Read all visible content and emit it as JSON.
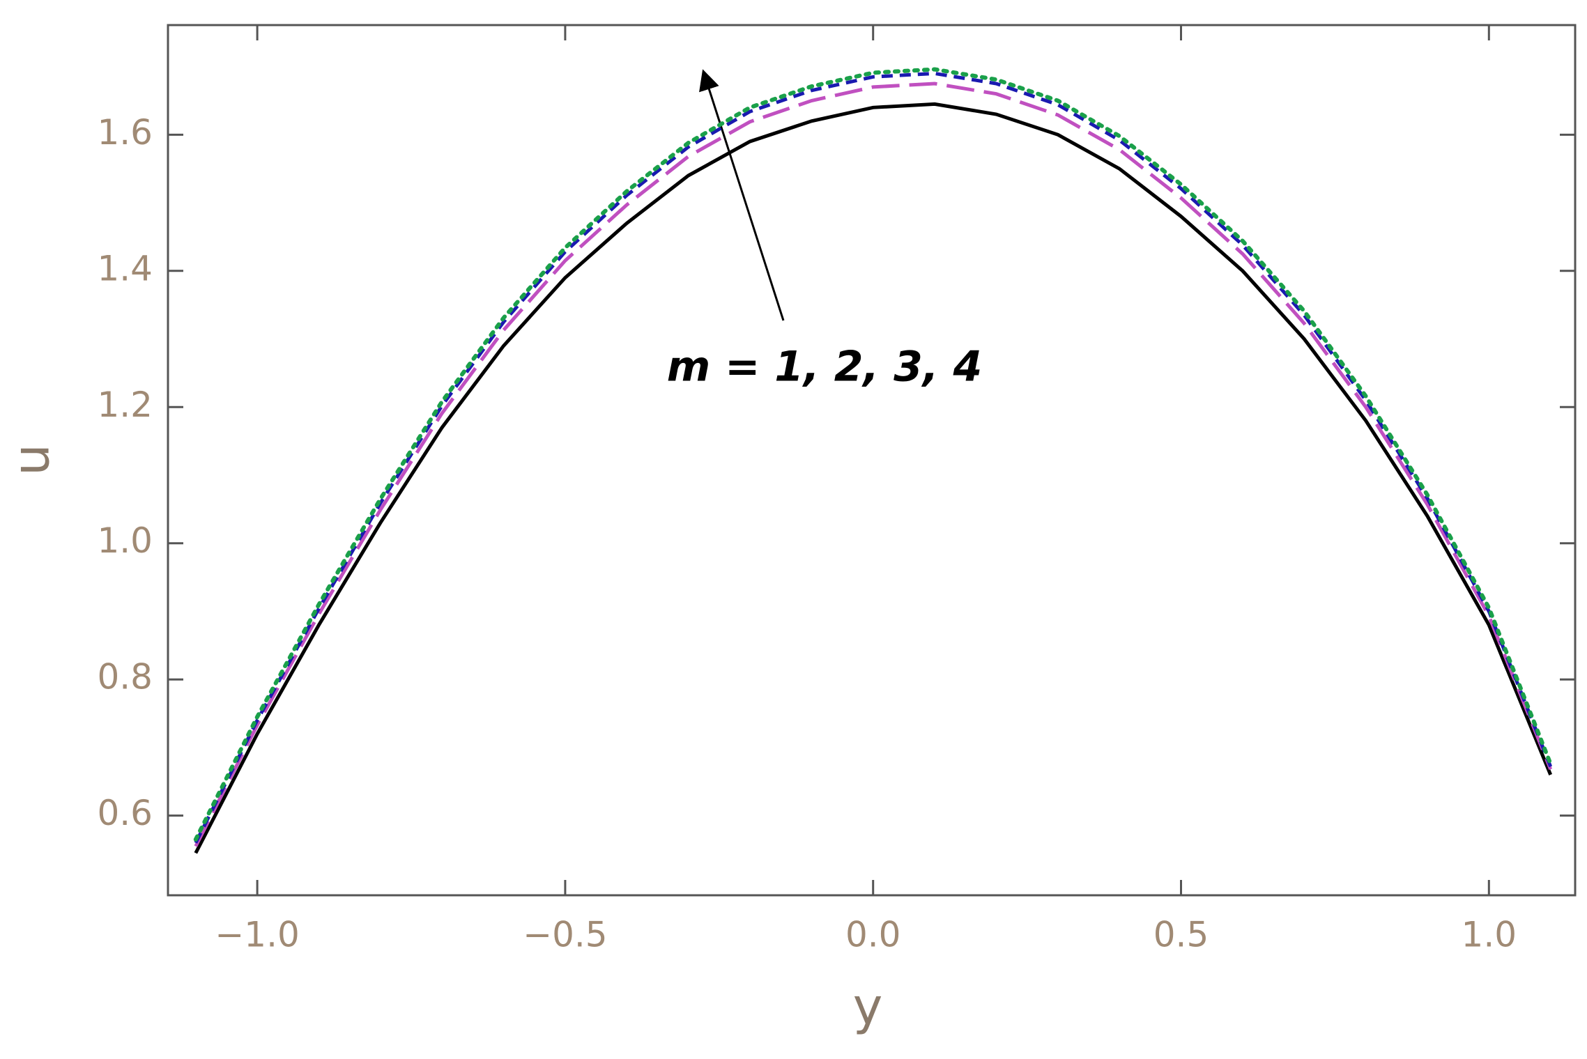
{
  "chart_data": {
    "type": "line",
    "x_label": "y",
    "y_label": "u",
    "annotation": "m = 1, 2, 3, 4",
    "x": [
      -1.1,
      -1.0,
      -0.9,
      -0.8,
      -0.7,
      -0.6,
      -0.5,
      -0.4,
      -0.3,
      -0.2,
      -0.1,
      0,
      0.1,
      0.2,
      0.3,
      0.4,
      0.5,
      0.6,
      0.7,
      0.8,
      0.9,
      1.0,
      1.1
    ],
    "series": [
      {
        "color": "#000000",
        "dash": "solid",
        "values": [
          0.545,
          0.72,
          0.88,
          1.03,
          1.17,
          1.29,
          1.39,
          1.47,
          1.54,
          1.59,
          1.62,
          1.64,
          1.645,
          1.63,
          1.6,
          1.55,
          1.48,
          1.4,
          1.3,
          1.18,
          1.04,
          0.88,
          0.66
        ]
      },
      {
        "color": "#c050c0",
        "dash": "longdash",
        "values": [
          0.555,
          0.733,
          0.896,
          1.049,
          1.191,
          1.313,
          1.415,
          1.497,
          1.568,
          1.619,
          1.65,
          1.67,
          1.675,
          1.66,
          1.629,
          1.578,
          1.507,
          1.425,
          1.323,
          1.2,
          1.057,
          0.893,
          0.668
        ]
      },
      {
        "color": "#1a1ab0",
        "dash": "shortdash",
        "values": [
          0.56,
          0.74,
          0.904,
          1.059,
          1.202,
          1.325,
          1.428,
          1.511,
          1.582,
          1.634,
          1.665,
          1.685,
          1.69,
          1.675,
          1.644,
          1.592,
          1.521,
          1.438,
          1.335,
          1.21,
          1.066,
          0.9,
          0.672
        ]
      },
      {
        "color": "#1aa04a",
        "dash": "dotted",
        "values": [
          0.565,
          0.745,
          0.91,
          1.065,
          1.208,
          1.331,
          1.434,
          1.517,
          1.588,
          1.64,
          1.671,
          1.691,
          1.696,
          1.681,
          1.65,
          1.598,
          1.527,
          1.444,
          1.341,
          1.216,
          1.071,
          0.905,
          0.676
        ]
      }
    ],
    "xlim": [
      -1.145,
      1.14
    ],
    "ylim": [
      0.483,
      1.761
    ],
    "xticks": [
      {
        "value": -1,
        "label": "−1.0"
      },
      {
        "value": -0.5,
        "label": "−0.5"
      },
      {
        "value": 0,
        "label": "0.0"
      },
      0.5,
      {
        "value": 1,
        "label": "1.0"
      }
    ],
    "yticks": [
      0.6,
      0.8,
      {
        "value": 1,
        "label": "1.0"
      },
      1.2,
      1.4,
      1.6
    ]
  }
}
